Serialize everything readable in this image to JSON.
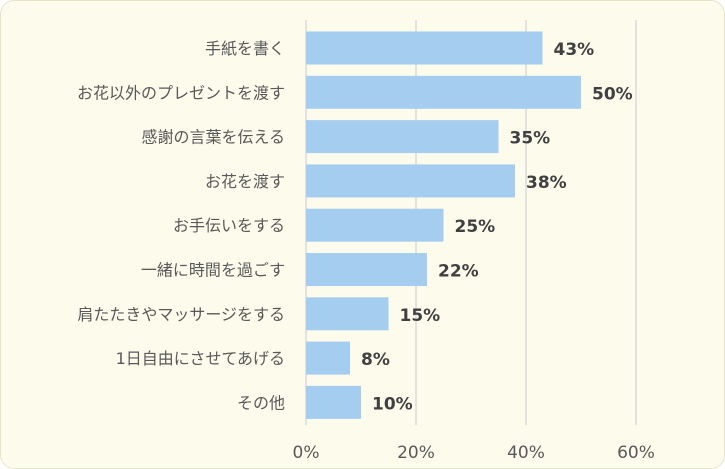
{
  "chart_data": {
    "type": "bar",
    "orientation": "horizontal",
    "categories": [
      "手紙を書く",
      "お花以外のプレゼントを渡す",
      "感謝の言葉を伝える",
      "お花を渡す",
      "お手伝いをする",
      "一緒に時間を過ごす",
      "肩たたきやマッサージをする",
      "1日自由にさせてあげる",
      "その他"
    ],
    "values": [
      43,
      50,
      35,
      38,
      25,
      22,
      15,
      8,
      10
    ],
    "data_labels": [
      "43%",
      "50%",
      "35%",
      "38%",
      "25%",
      "22%",
      "15%",
      "8%",
      "10%"
    ],
    "xlim": [
      0,
      60
    ],
    "xticks": [
      0,
      20,
      40,
      60
    ],
    "xtick_labels": [
      "0%",
      "20%",
      "40%",
      "60%"
    ],
    "grid": "vertical",
    "legend": "none",
    "title": "",
    "xlabel": "",
    "ylabel": "",
    "colors": {
      "bar": "#a5cdf0",
      "background": "#fdfbec",
      "grid": "#d9d9d9"
    }
  }
}
